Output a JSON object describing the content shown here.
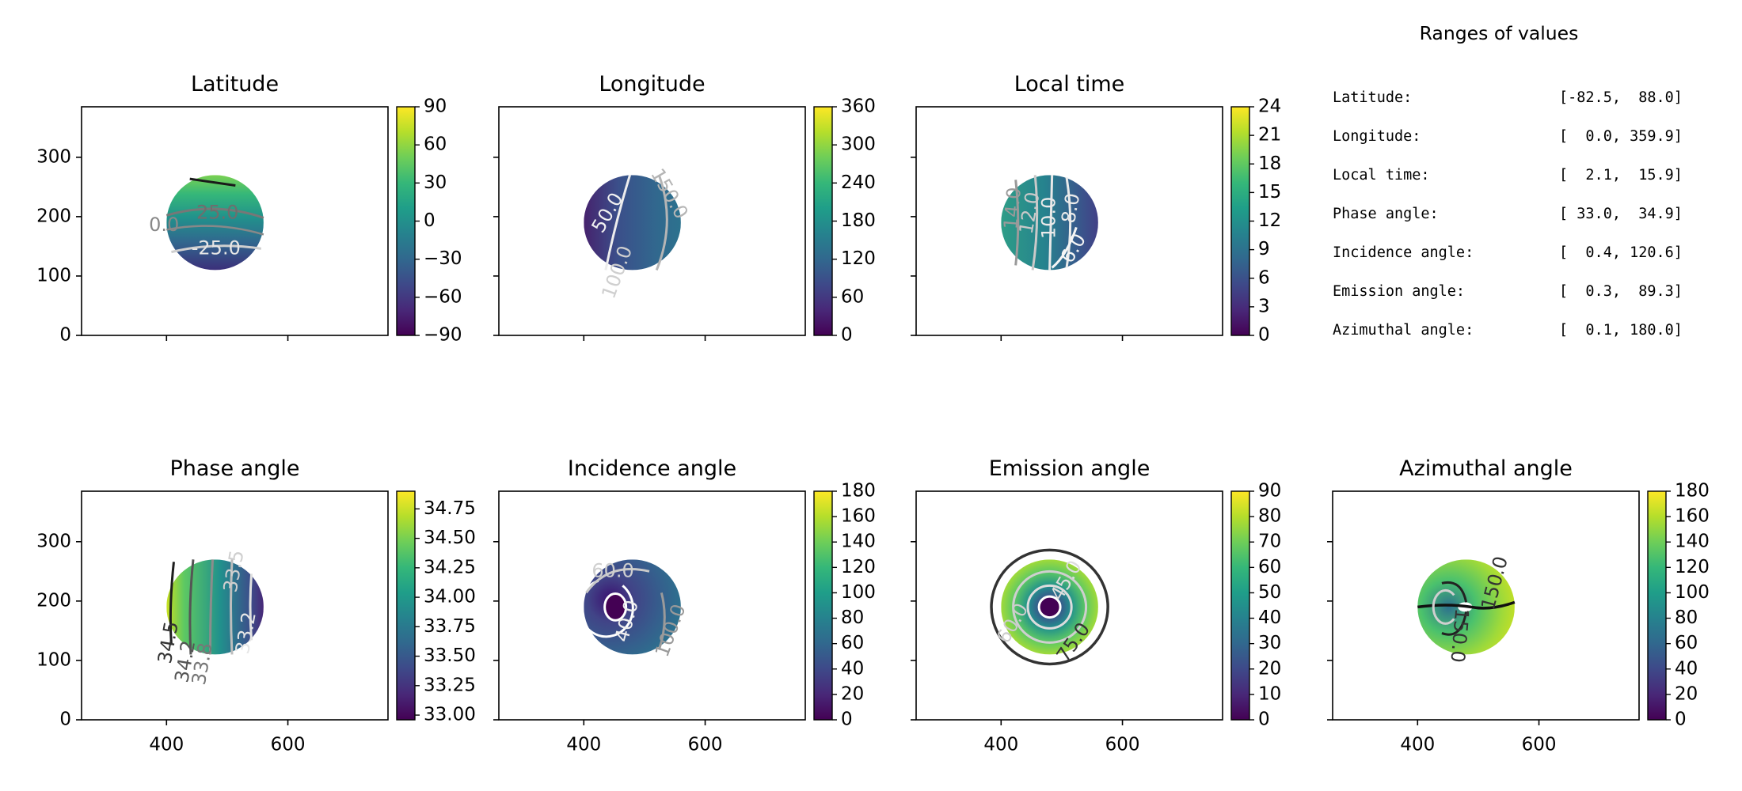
{
  "ranges_panel": {
    "title": "Ranges of values",
    "rows": [
      {
        "label": "Latitude:",
        "value": "[-82.5,  88.0]"
      },
      {
        "label": "Longitude:",
        "value": "[  0.0, 359.9]"
      },
      {
        "label": "Local time:",
        "value": "[  2.1,  15.9]"
      },
      {
        "label": "Phase angle:",
        "value": "[ 33.0,  34.9]"
      },
      {
        "label": "Incidence angle:",
        "value": "[  0.4, 120.6]"
      },
      {
        "label": "Emission angle:",
        "value": "[  0.3,  89.3]"
      },
      {
        "label": "Azimuthal angle:",
        "value": "[  0.1, 180.0]"
      }
    ]
  },
  "chart_data": [
    {
      "type": "heatmap",
      "title": "Latitude",
      "colormap": "viridis",
      "xlim": [
        260,
        765
      ],
      "ylim": [
        0,
        385
      ],
      "xticks": [
        400,
        600
      ],
      "yticks": [
        0,
        100,
        200,
        300
      ],
      "show_xticklabels": false,
      "show_yticklabels": true,
      "disk": {
        "cx": 480,
        "cy": 190,
        "r": 80
      },
      "colorbar": {
        "ticks": [
          "−90",
          "−60",
          "−30",
          "0",
          "30",
          "60",
          "90"
        ],
        "range": [
          -90,
          90
        ]
      },
      "contour_labels": [
        "25.0",
        "0.0",
        "-25.0"
      ]
    },
    {
      "type": "heatmap",
      "title": "Longitude",
      "colormap": "viridis",
      "xlim": [
        260,
        765
      ],
      "ylim": [
        0,
        385
      ],
      "xticks": [
        400,
        600
      ],
      "yticks": [
        0,
        100,
        200,
        300
      ],
      "show_xticklabels": false,
      "show_yticklabels": false,
      "disk": {
        "cx": 480,
        "cy": 190,
        "r": 80
      },
      "colorbar": {
        "ticks": [
          "0",
          "60",
          "120",
          "180",
          "240",
          "300",
          "360"
        ],
        "range": [
          0,
          360
        ]
      },
      "contour_labels": [
        "50.0",
        "150.0",
        "100.0"
      ]
    },
    {
      "type": "heatmap",
      "title": "Local time",
      "colormap": "viridis",
      "xlim": [
        260,
        765
      ],
      "ylim": [
        0,
        385
      ],
      "xticks": [
        400,
        600
      ],
      "yticks": [
        0,
        100,
        200,
        300
      ],
      "show_xticklabels": false,
      "show_yticklabels": false,
      "disk": {
        "cx": 480,
        "cy": 190,
        "r": 80
      },
      "colorbar": {
        "ticks": [
          "0",
          "3",
          "6",
          "9",
          "12",
          "15",
          "18",
          "21",
          "24"
        ],
        "range": [
          0,
          24
        ]
      },
      "contour_labels": [
        "14.0",
        "12.0",
        "10.0",
        "8.0",
        "6.0"
      ]
    },
    {
      "type": "heatmap",
      "title": "Phase angle",
      "colormap": "viridis",
      "xlim": [
        260,
        765
      ],
      "ylim": [
        0,
        385
      ],
      "xticks": [
        400,
        600
      ],
      "yticks": [
        0,
        100,
        200,
        300
      ],
      "show_xticklabels": true,
      "show_yticklabels": true,
      "disk": {
        "cx": 480,
        "cy": 190,
        "r": 80
      },
      "colorbar": {
        "ticks": [
          "33.00",
          "33.25",
          "33.50",
          "33.75",
          "34.00",
          "34.25",
          "34.50",
          "34.75"
        ],
        "range": [
          32.96,
          34.9
        ]
      },
      "contour_labels": [
        "34.5",
        "34.2",
        "33.8",
        "33.5",
        "33.2"
      ]
    },
    {
      "type": "heatmap",
      "title": "Incidence angle",
      "colormap": "viridis",
      "xlim": [
        260,
        765
      ],
      "ylim": [
        0,
        385
      ],
      "xticks": [
        400,
        600
      ],
      "yticks": [
        0,
        100,
        200,
        300
      ],
      "show_xticklabels": true,
      "show_yticklabels": false,
      "disk": {
        "cx": 480,
        "cy": 190,
        "r": 80
      },
      "colorbar": {
        "ticks": [
          "0",
          "20",
          "40",
          "60",
          "80",
          "100",
          "120",
          "140",
          "160",
          "180"
        ],
        "range": [
          0,
          180
        ]
      },
      "contour_labels": [
        "60.0",
        "40.0",
        "100.0"
      ]
    },
    {
      "type": "heatmap",
      "title": "Emission angle",
      "colormap": "viridis",
      "xlim": [
        260,
        765
      ],
      "ylim": [
        0,
        385
      ],
      "xticks": [
        400,
        600
      ],
      "yticks": [
        0,
        100,
        200,
        300
      ],
      "show_xticklabels": true,
      "show_yticklabels": false,
      "disk": {
        "cx": 480,
        "cy": 190,
        "r": 80
      },
      "colorbar": {
        "ticks": [
          "0",
          "10",
          "20",
          "30",
          "40",
          "50",
          "60",
          "70",
          "80",
          "90"
        ],
        "range": [
          0,
          90
        ]
      },
      "contour_labels": [
        "45.0",
        "60.0",
        "75.0"
      ]
    },
    {
      "type": "heatmap",
      "title": "Azimuthal angle",
      "colormap": "viridis",
      "xlim": [
        260,
        765
      ],
      "ylim": [
        0,
        385
      ],
      "xticks": [
        400,
        600
      ],
      "yticks": [
        0,
        100,
        200,
        300
      ],
      "show_xticklabels": true,
      "show_yticklabels": false,
      "disk": {
        "cx": 480,
        "cy": 190,
        "r": 80
      },
      "colorbar": {
        "ticks": [
          "0",
          "20",
          "40",
          "60",
          "80",
          "100",
          "120",
          "140",
          "160",
          "180"
        ],
        "range": [
          0,
          180
        ]
      },
      "contour_labels": [
        "150.0",
        "150.0"
      ]
    }
  ]
}
